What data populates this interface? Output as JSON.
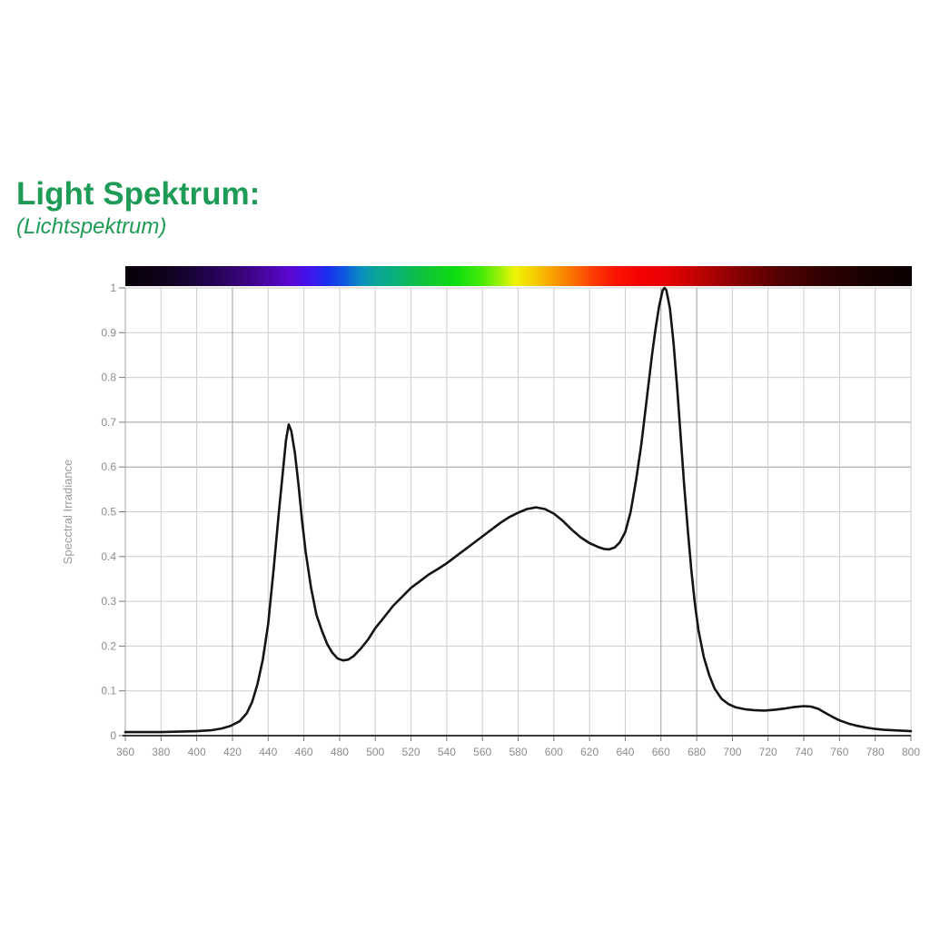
{
  "page": {
    "background": "#ffffff"
  },
  "header": {
    "title": "Light Spektrum:",
    "subtitle": "(Lichtspektrum)",
    "title_color": "#1e9b57",
    "subtitle_color": "#1e9b57"
  },
  "colors": {
    "grid": "#cdcdcd",
    "grid_dark": "#9b9b9b",
    "x_axis": "#3a3a3a",
    "y_axis": "#a0a0a0",
    "tick": "#777777",
    "tick_label": "#8c8c8c",
    "axis_title": "#9c9c9c",
    "curve": "#141414"
  },
  "chart_data": {
    "type": "line",
    "title": "",
    "xlabel": "",
    "ylabel": "Specctral Irradiance",
    "xlim": [
      360,
      800
    ],
    "ylim": [
      0,
      1
    ],
    "grid": true,
    "legend": "none",
    "x_ticks": [
      360,
      380,
      400,
      420,
      440,
      460,
      480,
      500,
      520,
      540,
      560,
      580,
      600,
      620,
      640,
      660,
      680,
      700,
      720,
      740,
      760,
      780,
      800
    ],
    "x_tick_labels": [
      "360",
      "380",
      "400",
      "420",
      "440",
      "460",
      "480",
      "500",
      "520",
      "540",
      "560",
      "580",
      "600",
      "620",
      "640",
      "660",
      "680",
      "700",
      "720",
      "740",
      "760",
      "780",
      "800"
    ],
    "y_ticks": [
      0,
      0.1,
      0.2,
      0.3,
      0.4,
      0.5,
      0.6,
      0.7,
      0.8,
      0.9,
      1
    ],
    "y_tick_labels": [
      "0",
      "0.1",
      "0.2",
      "0.3",
      "0.4",
      "0.5",
      "0.6",
      "0.7",
      "0.8",
      "0.9",
      "1"
    ],
    "dark_x_gridlines": [
      420,
      660,
      680
    ],
    "dark_y_gridlines": [
      0.6,
      0.7
    ],
    "peaks": [
      {
        "x": 451.5,
        "y": 0.695
      },
      {
        "x": 662,
        "y": 1.0
      }
    ],
    "points": [
      [
        360,
        0.008
      ],
      [
        370,
        0.008
      ],
      [
        380,
        0.008
      ],
      [
        390,
        0.009
      ],
      [
        400,
        0.01
      ],
      [
        408,
        0.012
      ],
      [
        414,
        0.016
      ],
      [
        419,
        0.022
      ],
      [
        424,
        0.032
      ],
      [
        428,
        0.05
      ],
      [
        431,
        0.075
      ],
      [
        434,
        0.115
      ],
      [
        437,
        0.17
      ],
      [
        440,
        0.25
      ],
      [
        443,
        0.37
      ],
      [
        446,
        0.5
      ],
      [
        448,
        0.58
      ],
      [
        450,
        0.66
      ],
      [
        451.5,
        0.695
      ],
      [
        453,
        0.68
      ],
      [
        455,
        0.63
      ],
      [
        457,
        0.56
      ],
      [
        459,
        0.48
      ],
      [
        461,
        0.41
      ],
      [
        464,
        0.33
      ],
      [
        467,
        0.27
      ],
      [
        470,
        0.235
      ],
      [
        473,
        0.205
      ],
      [
        476,
        0.185
      ],
      [
        479,
        0.172
      ],
      [
        482,
        0.168
      ],
      [
        485,
        0.17
      ],
      [
        488,
        0.178
      ],
      [
        492,
        0.195
      ],
      [
        496,
        0.215
      ],
      [
        500,
        0.24
      ],
      [
        505,
        0.265
      ],
      [
        510,
        0.29
      ],
      [
        515,
        0.31
      ],
      [
        520,
        0.33
      ],
      [
        525,
        0.345
      ],
      [
        530,
        0.36
      ],
      [
        535,
        0.372
      ],
      [
        540,
        0.385
      ],
      [
        545,
        0.4
      ],
      [
        550,
        0.415
      ],
      [
        555,
        0.43
      ],
      [
        560,
        0.445
      ],
      [
        565,
        0.46
      ],
      [
        570,
        0.475
      ],
      [
        575,
        0.488
      ],
      [
        580,
        0.498
      ],
      [
        585,
        0.506
      ],
      [
        590,
        0.51
      ],
      [
        595,
        0.506
      ],
      [
        600,
        0.496
      ],
      [
        605,
        0.48
      ],
      [
        610,
        0.46
      ],
      [
        615,
        0.443
      ],
      [
        620,
        0.43
      ],
      [
        625,
        0.421
      ],
      [
        628,
        0.417
      ],
      [
        631,
        0.416
      ],
      [
        634,
        0.42
      ],
      [
        637,
        0.432
      ],
      [
        640,
        0.455
      ],
      [
        643,
        0.5
      ],
      [
        646,
        0.57
      ],
      [
        649,
        0.65
      ],
      [
        652,
        0.75
      ],
      [
        655,
        0.85
      ],
      [
        657,
        0.91
      ],
      [
        659,
        0.96
      ],
      [
        661,
        0.995
      ],
      [
        662,
        1.0
      ],
      [
        663,
        0.995
      ],
      [
        665,
        0.955
      ],
      [
        667,
        0.88
      ],
      [
        669,
        0.78
      ],
      [
        671,
        0.67
      ],
      [
        673,
        0.56
      ],
      [
        675,
        0.46
      ],
      [
        677,
        0.37
      ],
      [
        679,
        0.295
      ],
      [
        681,
        0.235
      ],
      [
        684,
        0.175
      ],
      [
        687,
        0.135
      ],
      [
        690,
        0.105
      ],
      [
        694,
        0.082
      ],
      [
        698,
        0.07
      ],
      [
        702,
        0.063
      ],
      [
        707,
        0.059
      ],
      [
        712,
        0.057
      ],
      [
        718,
        0.056
      ],
      [
        724,
        0.058
      ],
      [
        730,
        0.061
      ],
      [
        735,
        0.064
      ],
      [
        740,
        0.066
      ],
      [
        744,
        0.065
      ],
      [
        748,
        0.06
      ],
      [
        752,
        0.051
      ],
      [
        756,
        0.042
      ],
      [
        760,
        0.034
      ],
      [
        765,
        0.027
      ],
      [
        770,
        0.022
      ],
      [
        775,
        0.018
      ],
      [
        780,
        0.015
      ],
      [
        785,
        0.013
      ],
      [
        790,
        0.012
      ],
      [
        795,
        0.011
      ],
      [
        800,
        0.01
      ]
    ],
    "spectrum_bar": {
      "stops": [
        {
          "nm": 360,
          "color": "#070107"
        },
        {
          "nm": 385,
          "color": "#10021e"
        },
        {
          "nm": 405,
          "color": "#20034a"
        },
        {
          "nm": 425,
          "color": "#380479"
        },
        {
          "nm": 440,
          "color": "#4c05a8"
        },
        {
          "nm": 452,
          "color": "#5a07d0"
        },
        {
          "nm": 462,
          "color": "#4412ea"
        },
        {
          "nm": 472,
          "color": "#1e2bf0"
        },
        {
          "nm": 482,
          "color": "#0d55e0"
        },
        {
          "nm": 492,
          "color": "#0b8ec0"
        },
        {
          "nm": 500,
          "color": "#09a59b"
        },
        {
          "nm": 510,
          "color": "#0aae7d"
        },
        {
          "nm": 520,
          "color": "#0dbb52"
        },
        {
          "nm": 532,
          "color": "#10ca2c"
        },
        {
          "nm": 545,
          "color": "#0edd10"
        },
        {
          "nm": 558,
          "color": "#3fe90a"
        },
        {
          "nm": 568,
          "color": "#8ef007"
        },
        {
          "nm": 578,
          "color": "#eef205"
        },
        {
          "nm": 588,
          "color": "#f6d004"
        },
        {
          "nm": 598,
          "color": "#f9a503"
        },
        {
          "nm": 610,
          "color": "#fb7202"
        },
        {
          "nm": 622,
          "color": "#fc3b02"
        },
        {
          "nm": 635,
          "color": "#fb1202"
        },
        {
          "nm": 648,
          "color": "#f40202"
        },
        {
          "nm": 660,
          "color": "#ea0202"
        },
        {
          "nm": 675,
          "color": "#cc0202"
        },
        {
          "nm": 690,
          "color": "#a80101"
        },
        {
          "nm": 705,
          "color": "#800101"
        },
        {
          "nm": 725,
          "color": "#540101"
        },
        {
          "nm": 750,
          "color": "#300101"
        },
        {
          "nm": 775,
          "color": "#180101"
        },
        {
          "nm": 800,
          "color": "#0b0101"
        }
      ]
    }
  }
}
